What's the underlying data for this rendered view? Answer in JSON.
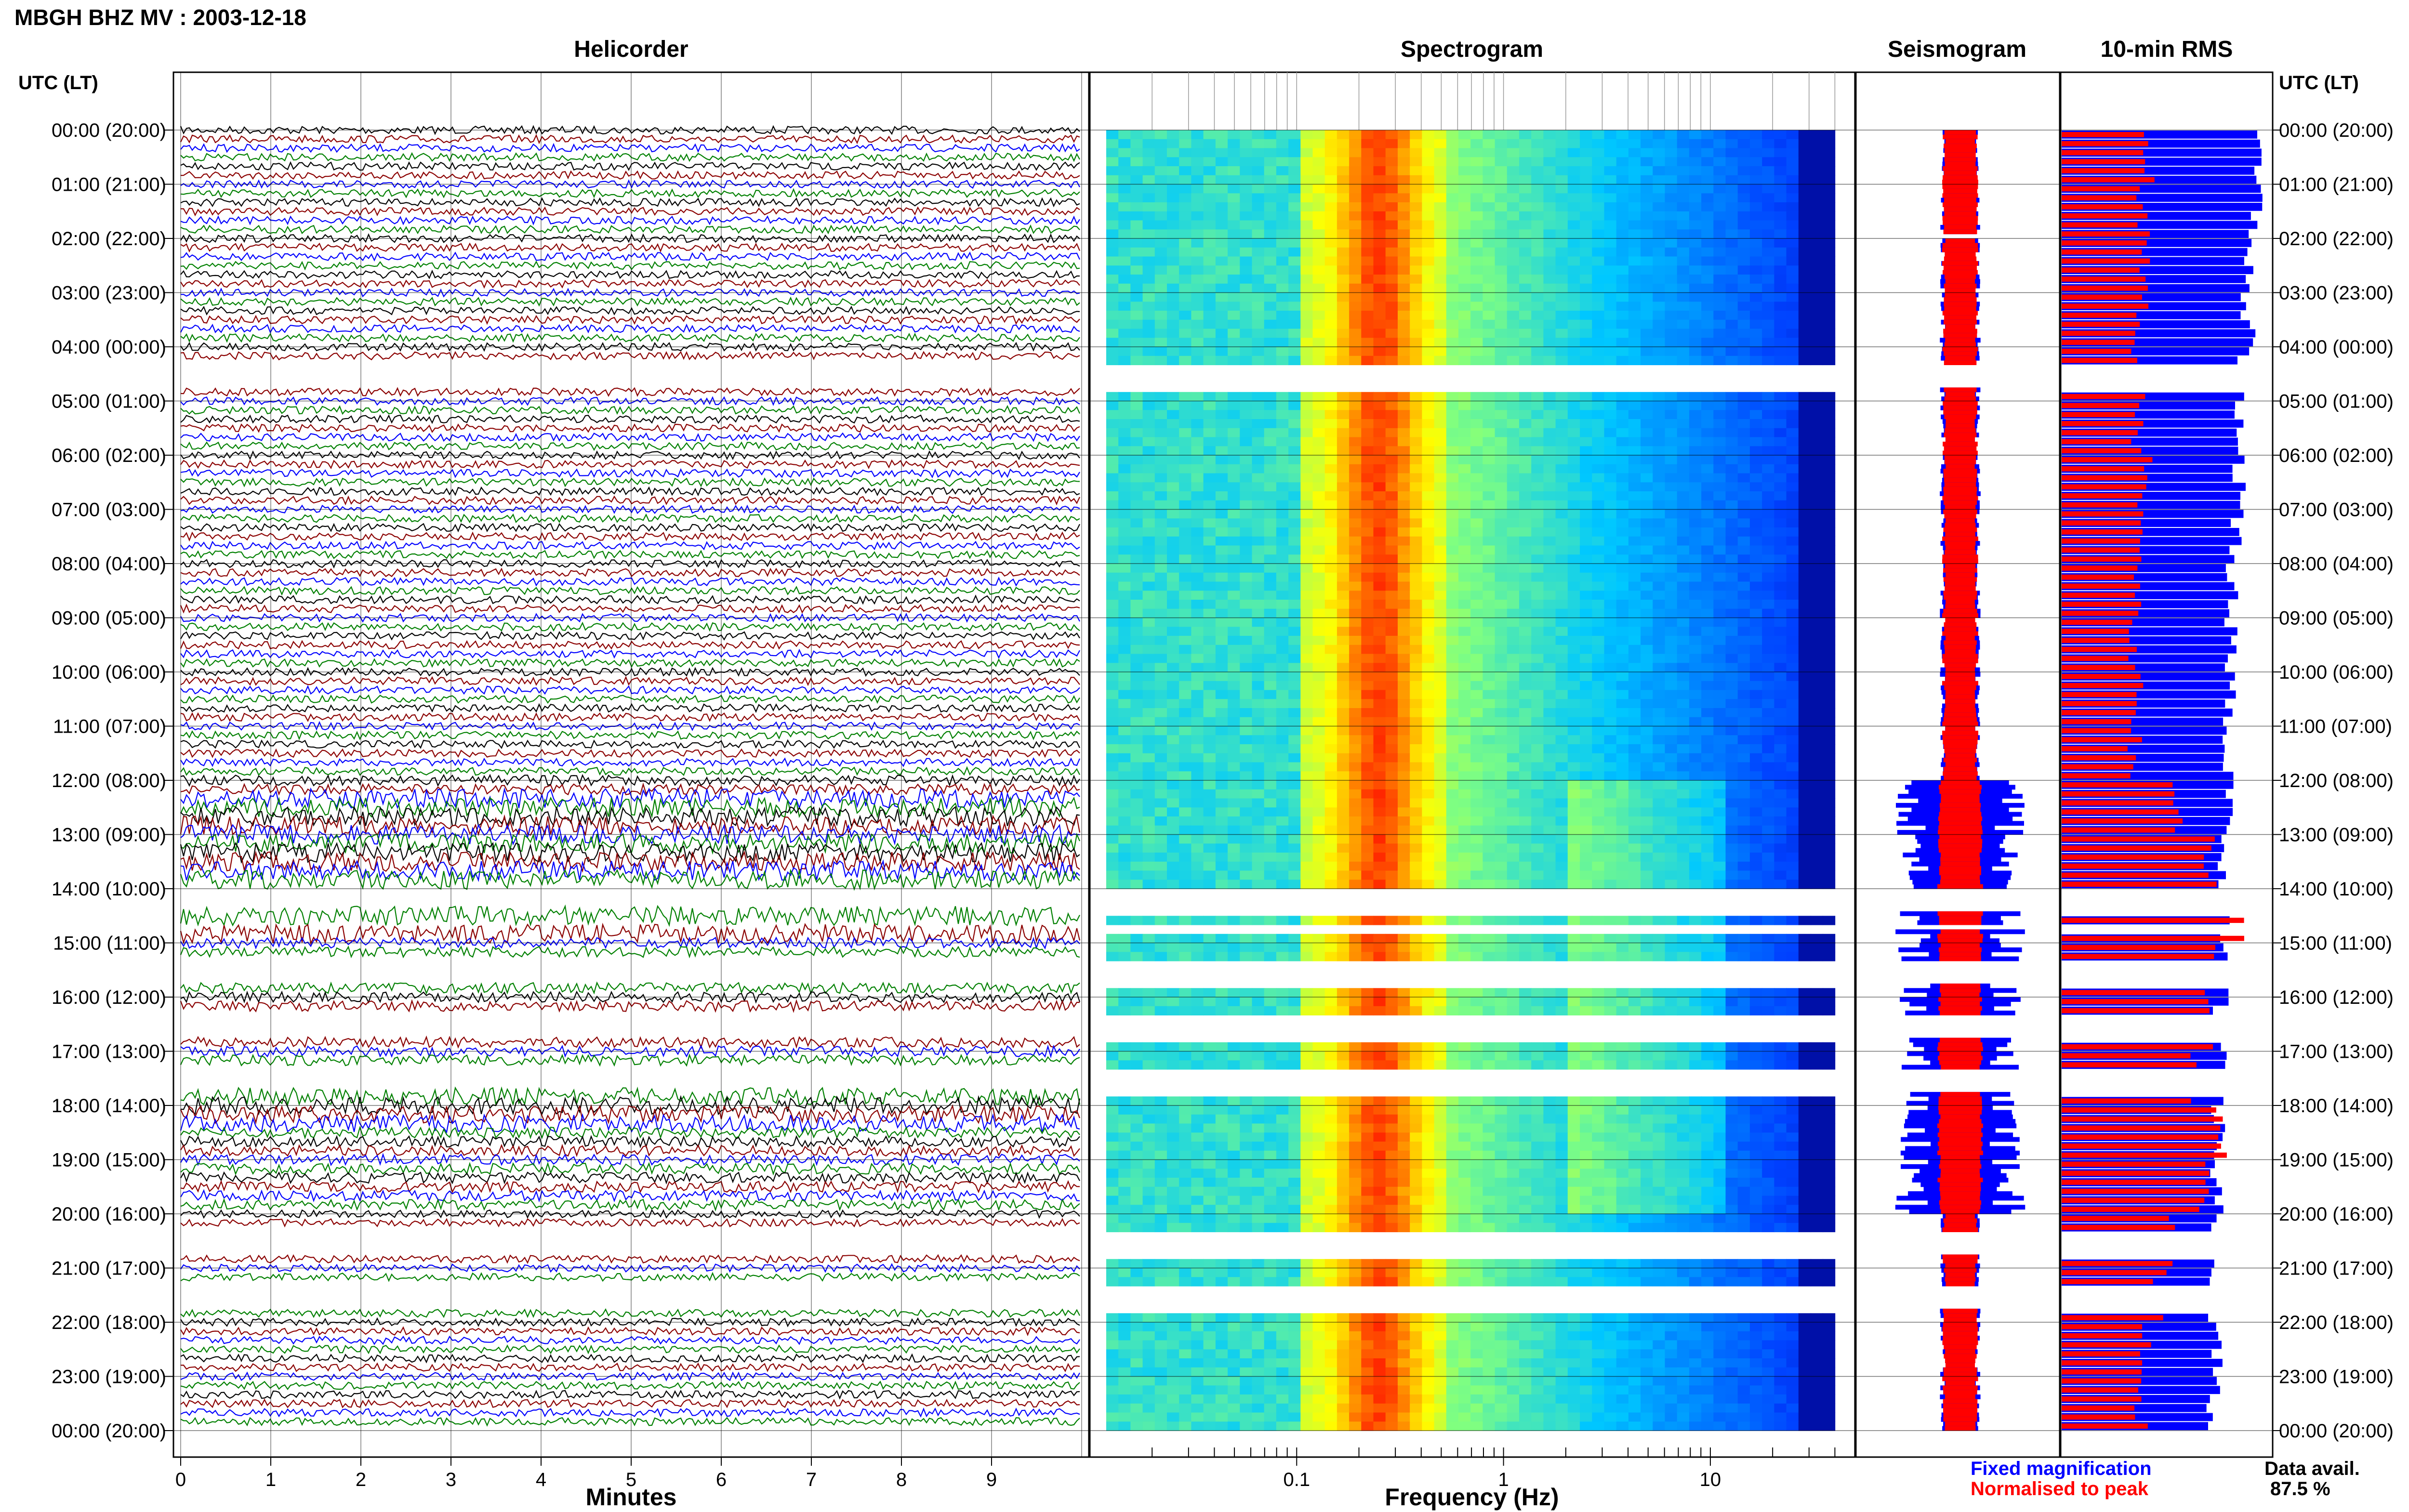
{
  "header": {
    "station_title": "MBGH BHZ MV : 2003-12-18",
    "utc_label_left": "UTC (LT)",
    "utc_label_right": "UTC (LT)"
  },
  "panels": {
    "helicorder": "Helicorder",
    "spectrogram": "Spectrogram",
    "seismogram": "Seismogram",
    "rms": "10-min RMS"
  },
  "axes": {
    "minutes_label": "Minutes",
    "frequency_label": "Frequency (Hz)"
  },
  "legend": {
    "fixed": "Fixed magnification",
    "normalised": "Normalised to peak",
    "fixed_color": "#0000ff",
    "normalised_color": "#ff0000"
  },
  "availability": {
    "label": "Data avail.",
    "value": "87.5 %"
  },
  "colors": {
    "trace_colors": [
      "#000000",
      "#8b0000",
      "#0000ff",
      "#008000"
    ],
    "rms_fixed": "#0000ff",
    "rms_norm": "#ff0000",
    "spec_low": "#00008b",
    "spec_high": "#ff0000"
  },
  "chart_data": {
    "type": "heatmap",
    "title": "MBGH BHZ MV : 2003-12-18",
    "hour_labels": [
      "00:00 (20:00)",
      "01:00 (21:00)",
      "02:00 (22:00)",
      "03:00 (23:00)",
      "04:00 (00:00)",
      "05:00 (01:00)",
      "06:00 (02:00)",
      "07:00 (03:00)",
      "08:00 (04:00)",
      "09:00 (05:00)",
      "10:00 (06:00)",
      "11:00 (07:00)",
      "12:00 (08:00)",
      "13:00 (09:00)",
      "14:00 (10:00)",
      "15:00 (11:00)",
      "16:00 (12:00)",
      "17:00 (13:00)",
      "18:00 (14:00)",
      "19:00 (15:00)",
      "20:00 (16:00)",
      "21:00 (17:00)",
      "22:00 (18:00)",
      "23:00 (19:00)",
      "00:00 (20:00)"
    ],
    "minutes_ticks": [
      "0",
      "1",
      "2",
      "3",
      "4",
      "5",
      "6",
      "7",
      "8",
      "9"
    ],
    "minutes_range": [
      0,
      10
    ],
    "frequency_ticks": [
      "0.1",
      "1",
      "10"
    ],
    "frequency_range_hz": [
      0.01,
      50
    ],
    "frequency_scale": "log",
    "rows_per_hour": 6,
    "gaps_hours": [
      [
        1.9,
        2.0
      ],
      [
        4.3,
        4.7
      ],
      [
        14.0,
        14.35
      ],
      [
        14.6,
        14.7
      ],
      [
        15.3,
        15.7
      ],
      [
        16.3,
        16.7
      ],
      [
        17.3,
        17.7
      ],
      [
        20.3,
        20.7
      ],
      [
        21.3,
        21.7
      ]
    ],
    "active_period_hours": [
      12.0,
      20.0
    ],
    "rms_fixed_fraction": [
      0.95,
      0.93,
      0.92,
      0.9,
      0.88,
      0.86,
      0.85,
      0.84,
      0.83,
      0.82,
      0.81,
      0.8,
      0.8,
      0.79,
      0.78,
      0.77,
      0.77,
      0.76,
      0.76,
      0.75,
      0.75,
      0.74,
      0.74,
      0.73
    ],
    "rms_norm_fraction": [
      0.42,
      0.4,
      0.39,
      0.38,
      0.37,
      0.37,
      0.4,
      0.38,
      0.37,
      0.36,
      0.36,
      0.35,
      0.55,
      0.72,
      0.85,
      0.72,
      0.7,
      0.62,
      0.78,
      0.7,
      0.55,
      0.48,
      0.4,
      0.38
    ]
  }
}
